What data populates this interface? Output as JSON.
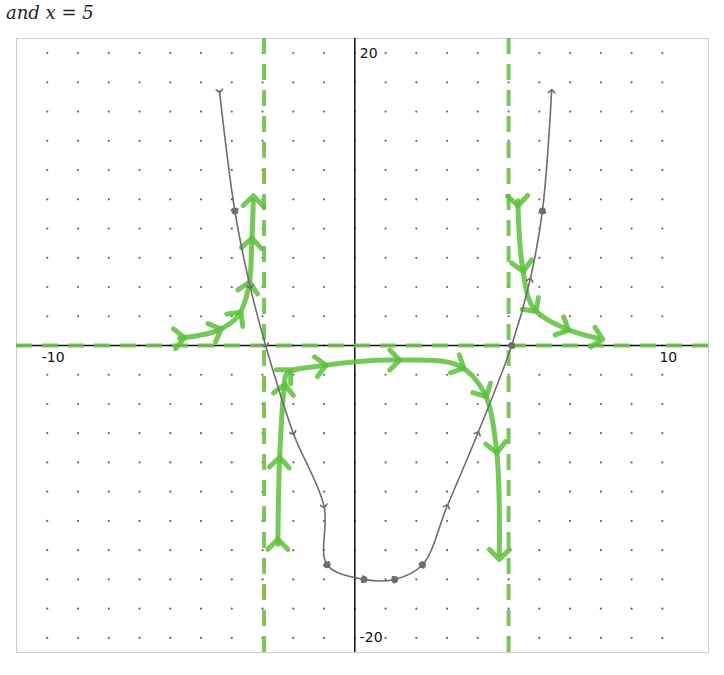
{
  "chart_data": {
    "type": "line",
    "annotations": [
      "and x = 5"
    ],
    "xlim": [
      -11,
      11.5
    ],
    "ylim": [
      -21,
      21
    ],
    "xticks": [
      -10,
      10
    ],
    "yticks": [
      -20,
      20
    ],
    "grid": true,
    "series": [
      {
        "type": "vline",
        "x": [
          -2.95,
          5
        ],
        "color": "#6cc04a",
        "line_style": "dashed"
      },
      {
        "type": "hline",
        "values": [
          0
        ],
        "color": "#6cc04a",
        "line_style": "dashed"
      },
      {
        "type": "line",
        "color": "#5cbf3c",
        "line_style": "highlighter",
        "marker": "arrow",
        "x": [
          -5.7,
          -4.5,
          -3.8,
          -3.45,
          -3.35,
          -3.3
        ],
        "values": [
          0.5,
          1,
          2,
          4,
          7,
          9.9
        ]
      },
      {
        "type": "line",
        "color": "#5cbf3c",
        "line_style": "highlighter",
        "marker": "arrow",
        "x": [
          -2.5,
          -2.45,
          -2.3,
          -2.2,
          -1.1,
          1.3,
          3.4,
          4.2,
          4.6,
          4.7
        ],
        "values": [
          -13.6,
          -8,
          -3,
          -1.9,
          -1.4,
          -1,
          -1.4,
          -3.2,
          -7,
          -14.3
        ]
      },
      {
        "type": "line",
        "color": "#5cbf3c",
        "line_style": "highlighter",
        "marker": "arrow",
        "x": [
          5.3,
          5.45,
          5.8,
          6.8,
          7.9
        ],
        "values": [
          9.9,
          5.4,
          2.6,
          1.2,
          0.5
        ]
      },
      {
        "type": "line",
        "color": "#6e6e6e",
        "line_style": "solid",
        "marker": "arrow",
        "x": [
          -4.4,
          -3.9,
          -3.4,
          -2.9,
          -2,
          -1,
          -0.9,
          0.3,
          1.3,
          2.2,
          3,
          4,
          5.1,
          5.7,
          6.1,
          6.4
        ],
        "values": [
          17.4,
          9.2,
          4,
          0,
          -6,
          -11,
          -15,
          -16,
          -16,
          -15,
          -11,
          -6,
          0,
          4.5,
          9.2,
          17.4
        ]
      },
      {
        "type": "scatter",
        "color": "#6e6e6e",
        "marker": "dot",
        "x": [
          -3.9,
          -0.9,
          0.3,
          1.3,
          2.2,
          5.1,
          6.1
        ],
        "values": [
          9.2,
          -15,
          -16,
          -16,
          -15,
          0,
          9.2
        ]
      }
    ]
  }
}
